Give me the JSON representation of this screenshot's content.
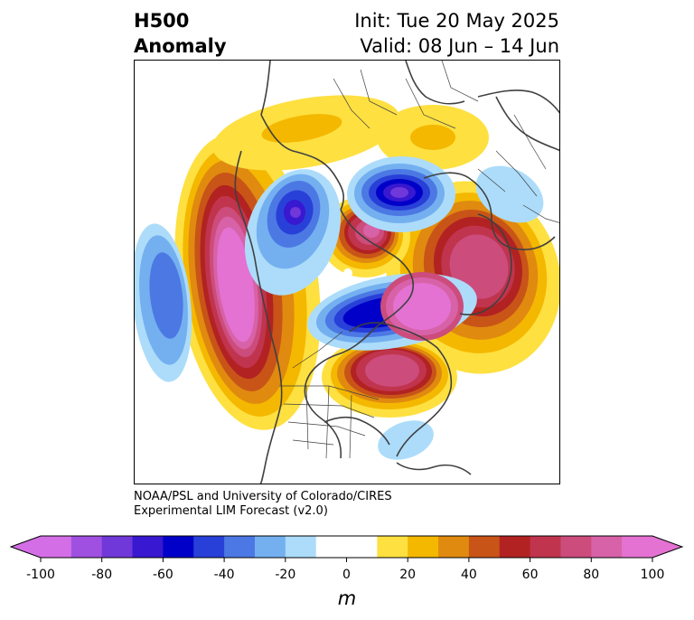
{
  "title": {
    "variable": "H500",
    "type": "Anomaly",
    "init": "Init: Tue 20 May 2025",
    "valid": "Valid: 08 Jun – 14 Jun"
  },
  "credit": {
    "line1": "NOAA/PSL and University of Colorado/CIRES",
    "line2": "Experimental LIM Forecast (v2.0)"
  },
  "colorbar": {
    "unit": "m",
    "ticks": [
      "-100",
      "-80",
      "-60",
      "-40",
      "-20",
      "0",
      "20",
      "40",
      "60",
      "80",
      "100"
    ],
    "levels": [
      -100,
      -90,
      -80,
      -70,
      -60,
      -50,
      -40,
      -30,
      -20,
      -10,
      10,
      20,
      30,
      40,
      50,
      60,
      70,
      80,
      90,
      100
    ],
    "colors": [
      "#d46ee6",
      "#a050e0",
      "#7038d8",
      "#3818d0",
      "#0000c8",
      "#2840d8",
      "#4c78e4",
      "#74b0f0",
      "#acdcfa",
      "#ffffff",
      "#fee040",
      "#f4b800",
      "#e08a10",
      "#c85418",
      "#b22222",
      "#c0344e",
      "#cc4c7c",
      "#d862a8",
      "#e472d2"
    ],
    "extend_min_color": "#d46ee6",
    "extend_max_color": "#e472d2"
  }
}
